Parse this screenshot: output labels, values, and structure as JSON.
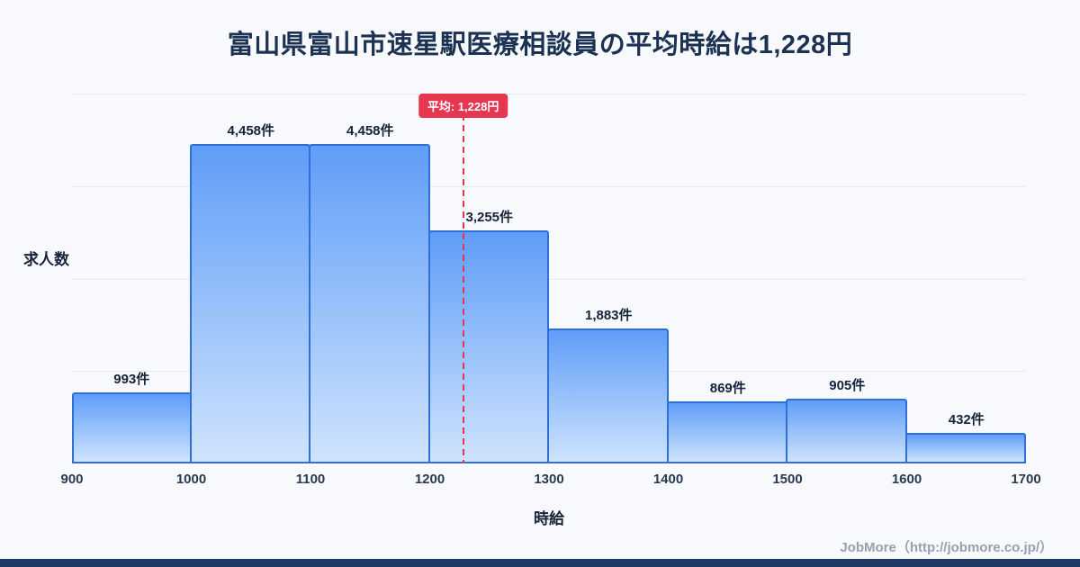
{
  "page": {
    "title": "富山県富山市速星駅医療相談員の平均時給は1,228円",
    "footer": "JobMore（http://jobmore.co.jp/）"
  },
  "chart_data": {
    "type": "bar",
    "subtype": "histogram",
    "title": "富山県富山市速星駅医療相談員の平均時給は1,228円",
    "xlabel": "時給",
    "ylabel": "求人数",
    "bin_edges": [
      900,
      1000,
      1100,
      1200,
      1300,
      1400,
      1500,
      1600,
      1700
    ],
    "bin_labels": [
      "900",
      "1000",
      "1100",
      "1200",
      "1300",
      "1400",
      "1500",
      "1600",
      "1700"
    ],
    "values": [
      993,
      4458,
      4458,
      3255,
      1883,
      869,
      905,
      432
    ],
    "value_labels": [
      "993件",
      "4,458件",
      "4,458件",
      "3,255件",
      "1,883件",
      "869件",
      "905件",
      "432件"
    ],
    "average": {
      "value": 1228,
      "label": "平均: 1,228円"
    },
    "ylim": [
      0,
      4900
    ],
    "grid": true,
    "legend": "none",
    "colors": {
      "bar_top": "#609df8",
      "bar_bottom": "#cfe3fd",
      "bar_border": "#2e6fd8",
      "average_line": "#e8344e",
      "average_badge": "#e63750",
      "title_text": "#1d3253",
      "footer_strip": "#203a66",
      "background": "#f7f9fc"
    }
  }
}
